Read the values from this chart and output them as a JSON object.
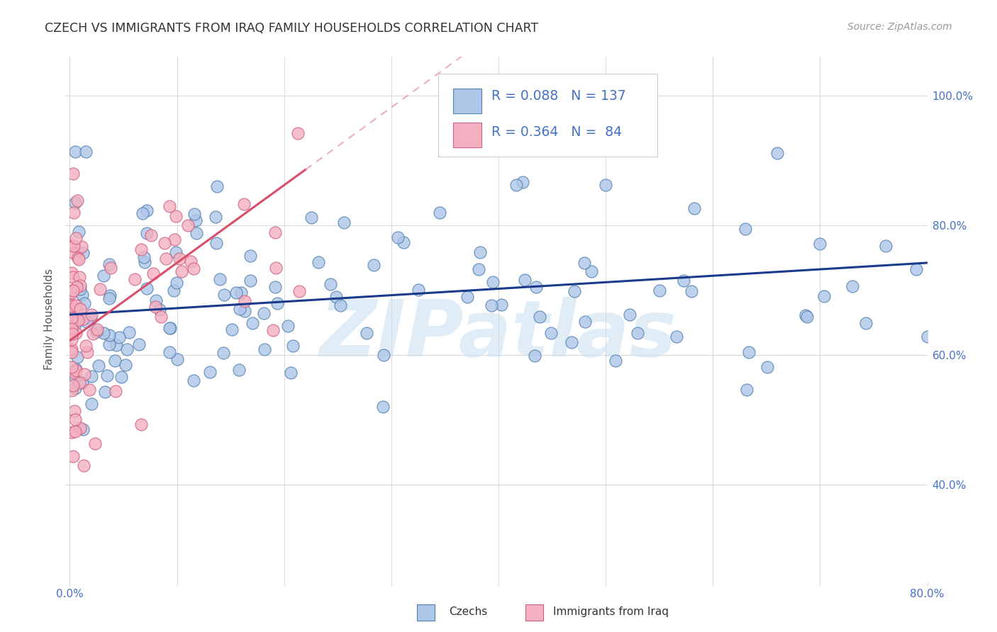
{
  "title": "CZECH VS IMMIGRANTS FROM IRAQ FAMILY HOUSEHOLDS CORRELATION CHART",
  "source": "Source: ZipAtlas.com",
  "ylabel": "Family Households",
  "legend_blue_R": "0.088",
  "legend_blue_N": "137",
  "legend_pink_R": "0.364",
  "legend_pink_N": "84",
  "blue_line_color": "#1a3a8c",
  "pink_line_color": "#d94f6a",
  "pink_dashed_color": "#e8a0b0",
  "watermark": "ZIPatlas",
  "watermark_color": "#c8ddf0",
  "background_color": "#ffffff",
  "grid_color": "#d8d8d8",
  "title_color": "#333333",
  "right_axis_color": "#4472c4",
  "scatter_blue_color": "#aec6e8",
  "scatter_pink_color": "#f4b0c0",
  "scatter_blue_edge": "#5080b0",
  "scatter_pink_edge": "#d06080",
  "xlim": [
    0.0,
    0.8
  ],
  "ylim": [
    0.25,
    1.06
  ],
  "yticks": [
    0.4,
    0.6,
    0.8,
    1.0
  ],
  "xtick_left": "0.0%",
  "xtick_right": "80.0%",
  "bottom_label1": "Czechs",
  "bottom_label2": "Immigrants from Iraq"
}
